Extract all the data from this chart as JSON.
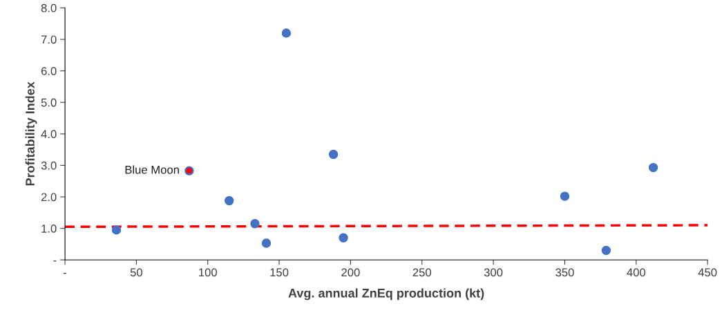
{
  "chart_data": {
    "type": "scatter",
    "xlabel": "Avg. annual ZnEq production (kt)",
    "ylabel": "Profitability Index",
    "xlim": [
      0,
      450
    ],
    "ylim": [
      0,
      8
    ],
    "xticks": [
      {
        "value": 0,
        "label": "-"
      },
      50,
      100,
      150,
      200,
      250,
      300,
      350,
      400,
      450
    ],
    "yticks": [
      {
        "value": 0,
        "label": "-"
      },
      {
        "value": 1,
        "label": "1.0"
      },
      {
        "value": 2,
        "label": "2.0"
      },
      {
        "value": 3,
        "label": "3.0"
      },
      {
        "value": 4,
        "label": "4.0"
      },
      {
        "value": 5,
        "label": "5.0"
      },
      {
        "value": 6,
        "label": "6.0"
      },
      {
        "value": 7,
        "label": "7.0"
      },
      {
        "value": 8,
        "label": "8.0"
      }
    ],
    "grid": false,
    "legend": false,
    "marker": "circle",
    "series": [
      {
        "color": "#4472c4",
        "x": [
          36,
          87,
          115,
          133,
          141,
          155,
          188,
          195,
          350,
          379,
          412
        ],
        "values": [
          0.95,
          2.83,
          1.88,
          1.15,
          0.53,
          7.2,
          3.35,
          0.7,
          2.02,
          0.3,
          2.93
        ]
      },
      {
        "color": "#ff0000",
        "x": [
          87
        ],
        "values": [
          2.83
        ]
      },
      {
        "type": "line",
        "line_style": "dashed",
        "marker": "none",
        "color": "#ff0000",
        "x": [
          0,
          450
        ],
        "values": [
          1.05,
          1.1
        ]
      }
    ],
    "annotations": [
      {
        "text": "Blue Moon",
        "x": 87,
        "y": 2.83
      }
    ]
  }
}
